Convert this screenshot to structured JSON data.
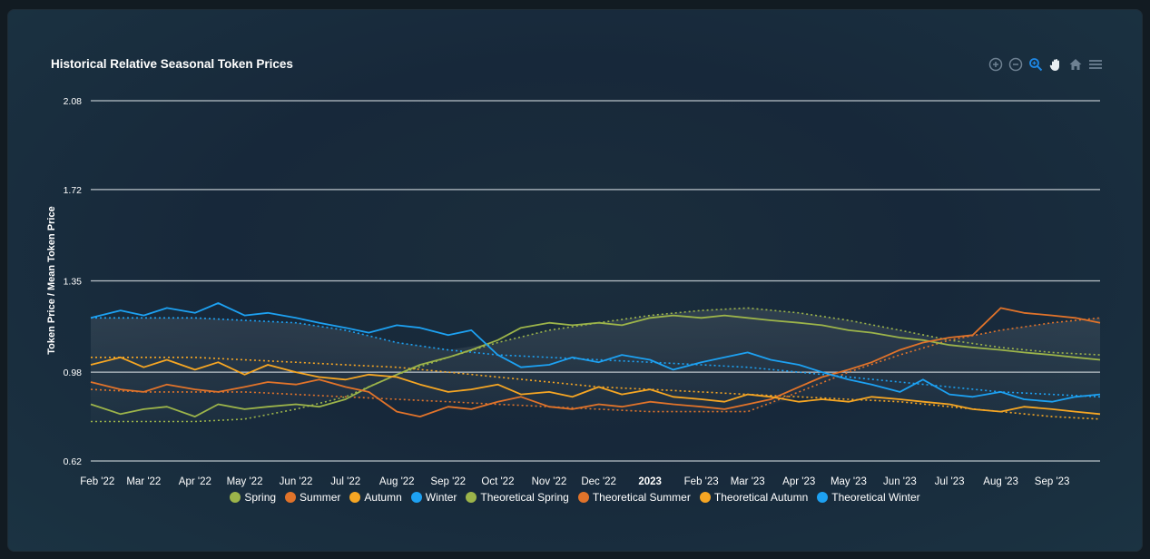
{
  "toolbar": {
    "icons": [
      "zoom-in-icon",
      "zoom-out-icon",
      "selection-zoom-icon",
      "pan-icon",
      "reset-home-icon",
      "menu-icon"
    ],
    "active_color": "#1e88e5",
    "inactive_color": "#6e8192"
  },
  "chart_data": {
    "type": "line",
    "title": "Historical Relative Seasonal Token Prices",
    "ylabel": "Token Price / Mean Token Price",
    "xlabel": "",
    "ylim": [
      0.62,
      2.08
    ],
    "y_ticks": [
      "0.62",
      "0.98",
      "1.35",
      "1.72",
      "2.08"
    ],
    "x_range": [
      "2022-01-28",
      "2023-09-30"
    ],
    "x_ticks": [
      {
        "label": "Feb '22",
        "date": "2022-02-01"
      },
      {
        "label": "Mar '22",
        "date": "2022-03-01"
      },
      {
        "label": "Apr '22",
        "date": "2022-04-01"
      },
      {
        "label": "May '22",
        "date": "2022-05-01"
      },
      {
        "label": "Jun '22",
        "date": "2022-06-01"
      },
      {
        "label": "Jul '22",
        "date": "2022-07-01"
      },
      {
        "label": "Aug '22",
        "date": "2022-08-01"
      },
      {
        "label": "Sep '22",
        "date": "2022-09-01"
      },
      {
        "label": "Oct '22",
        "date": "2022-10-01"
      },
      {
        "label": "Nov '22",
        "date": "2022-11-01"
      },
      {
        "label": "Dec '22",
        "date": "2022-12-01"
      },
      {
        "label": "2023",
        "date": "2023-01-01",
        "bold": true
      },
      {
        "label": "Feb '23",
        "date": "2023-02-01"
      },
      {
        "label": "Mar '23",
        "date": "2023-03-01"
      },
      {
        "label": "Apr '23",
        "date": "2023-04-01"
      },
      {
        "label": "May '23",
        "date": "2023-05-01"
      },
      {
        "label": "Jun '23",
        "date": "2023-06-01"
      },
      {
        "label": "Jul '23",
        "date": "2023-07-01"
      },
      {
        "label": "Aug '23",
        "date": "2023-08-01"
      },
      {
        "label": "Sep '23",
        "date": "2023-09-01"
      }
    ],
    "grid": true,
    "legend_position": "bottom-center",
    "series": [
      {
        "name": "Spring",
        "color": "#9cb44a",
        "style": "solid",
        "x": [
          "2022-01-28",
          "2022-02-15",
          "2022-03-01",
          "2022-03-15",
          "2022-04-01",
          "2022-04-15",
          "2022-05-01",
          "2022-05-15",
          "2022-06-01",
          "2022-06-15",
          "2022-07-01",
          "2022-07-15",
          "2022-08-01",
          "2022-08-15",
          "2022-09-01",
          "2022-09-15",
          "2022-10-01",
          "2022-10-15",
          "2022-11-01",
          "2022-11-15",
          "2022-12-01",
          "2022-12-15",
          "2023-01-01",
          "2023-01-15",
          "2023-02-01",
          "2023-02-15",
          "2023-03-01",
          "2023-03-15",
          "2023-04-01",
          "2023-04-15",
          "2023-05-01",
          "2023-05-15",
          "2023-06-01",
          "2023-06-15",
          "2023-07-01",
          "2023-07-15",
          "2023-08-01",
          "2023-08-15",
          "2023-09-01",
          "2023-09-15",
          "2023-09-30"
        ],
        "y": [
          0.85,
          0.81,
          0.83,
          0.84,
          0.8,
          0.85,
          0.83,
          0.84,
          0.85,
          0.84,
          0.87,
          0.92,
          0.97,
          1.01,
          1.04,
          1.07,
          1.11,
          1.16,
          1.18,
          1.17,
          1.18,
          1.17,
          1.2,
          1.21,
          1.2,
          1.21,
          1.2,
          1.19,
          1.18,
          1.17,
          1.15,
          1.14,
          1.12,
          1.11,
          1.09,
          1.08,
          1.07,
          1.06,
          1.05,
          1.04,
          1.03
        ]
      },
      {
        "name": "Summer",
        "color": "#e1732a",
        "style": "solid",
        "x": [
          "2022-01-28",
          "2022-02-15",
          "2022-03-01",
          "2022-03-15",
          "2022-04-01",
          "2022-04-15",
          "2022-05-01",
          "2022-05-15",
          "2022-06-01",
          "2022-06-15",
          "2022-07-01",
          "2022-07-15",
          "2022-08-01",
          "2022-08-15",
          "2022-09-01",
          "2022-09-15",
          "2022-10-01",
          "2022-10-15",
          "2022-11-01",
          "2022-11-15",
          "2022-12-01",
          "2022-12-15",
          "2023-01-01",
          "2023-01-15",
          "2023-02-01",
          "2023-02-15",
          "2023-03-01",
          "2023-03-15",
          "2023-04-01",
          "2023-04-15",
          "2023-05-01",
          "2023-05-15",
          "2023-06-01",
          "2023-06-15",
          "2023-07-01",
          "2023-07-15",
          "2023-08-01",
          "2023-08-15",
          "2023-09-01",
          "2023-09-15",
          "2023-09-30"
        ],
        "y": [
          0.94,
          0.91,
          0.9,
          0.93,
          0.91,
          0.9,
          0.92,
          0.94,
          0.93,
          0.95,
          0.92,
          0.9,
          0.82,
          0.8,
          0.84,
          0.83,
          0.86,
          0.88,
          0.84,
          0.83,
          0.85,
          0.84,
          0.86,
          0.85,
          0.84,
          0.83,
          0.85,
          0.87,
          0.92,
          0.96,
          0.99,
          1.02,
          1.07,
          1.1,
          1.12,
          1.13,
          1.24,
          1.22,
          1.21,
          1.2,
          1.18
        ]
      },
      {
        "name": "Autumn",
        "color": "#f6a623",
        "style": "solid",
        "x": [
          "2022-01-28",
          "2022-02-15",
          "2022-03-01",
          "2022-03-15",
          "2022-04-01",
          "2022-04-15",
          "2022-05-01",
          "2022-05-15",
          "2022-06-01",
          "2022-06-15",
          "2022-07-01",
          "2022-07-15",
          "2022-08-01",
          "2022-08-15",
          "2022-09-01",
          "2022-09-15",
          "2022-10-01",
          "2022-10-15",
          "2022-11-01",
          "2022-11-15",
          "2022-12-01",
          "2022-12-15",
          "2023-01-01",
          "2023-01-15",
          "2023-02-01",
          "2023-02-15",
          "2023-03-01",
          "2023-03-15",
          "2023-04-01",
          "2023-04-15",
          "2023-05-01",
          "2023-05-15",
          "2023-06-01",
          "2023-06-15",
          "2023-07-01",
          "2023-07-15",
          "2023-08-01",
          "2023-08-15",
          "2023-09-01",
          "2023-09-15",
          "2023-09-30"
        ],
        "y": [
          1.01,
          1.04,
          1.0,
          1.03,
          0.99,
          1.02,
          0.97,
          1.01,
          0.98,
          0.96,
          0.95,
          0.97,
          0.96,
          0.93,
          0.9,
          0.91,
          0.93,
          0.89,
          0.9,
          0.88,
          0.92,
          0.89,
          0.91,
          0.88,
          0.87,
          0.86,
          0.89,
          0.88,
          0.86,
          0.87,
          0.86,
          0.88,
          0.87,
          0.86,
          0.85,
          0.83,
          0.82,
          0.84,
          0.83,
          0.82,
          0.81
        ]
      },
      {
        "name": "Winter",
        "color": "#1da1f2",
        "style": "solid",
        "x": [
          "2022-01-28",
          "2022-02-15",
          "2022-03-01",
          "2022-03-15",
          "2022-04-01",
          "2022-04-15",
          "2022-05-01",
          "2022-05-15",
          "2022-06-01",
          "2022-06-15",
          "2022-07-01",
          "2022-07-15",
          "2022-08-01",
          "2022-08-15",
          "2022-09-01",
          "2022-09-15",
          "2022-10-01",
          "2022-10-15",
          "2022-11-01",
          "2022-11-15",
          "2022-12-01",
          "2022-12-15",
          "2023-01-01",
          "2023-01-15",
          "2023-02-01",
          "2023-02-15",
          "2023-03-01",
          "2023-03-15",
          "2023-04-01",
          "2023-04-15",
          "2023-05-01",
          "2023-05-15",
          "2023-06-01",
          "2023-06-15",
          "2023-07-01",
          "2023-07-15",
          "2023-08-01",
          "2023-08-15",
          "2023-09-01",
          "2023-09-15",
          "2023-09-30"
        ],
        "y": [
          1.2,
          1.23,
          1.21,
          1.24,
          1.22,
          1.26,
          1.21,
          1.22,
          1.2,
          1.18,
          1.16,
          1.14,
          1.17,
          1.16,
          1.13,
          1.15,
          1.05,
          1.0,
          1.01,
          1.04,
          1.02,
          1.05,
          1.03,
          0.99,
          1.02,
          1.04,
          1.06,
          1.03,
          1.01,
          0.98,
          0.95,
          0.93,
          0.9,
          0.95,
          0.89,
          0.88,
          0.9,
          0.87,
          0.86,
          0.88,
          0.89
        ]
      },
      {
        "name": "Theoretical Spring",
        "color": "#9cb44a",
        "style": "dotted",
        "x": [
          "2022-01-28",
          "2022-03-01",
          "2022-04-01",
          "2022-05-01",
          "2022-06-01",
          "2022-07-01",
          "2022-08-01",
          "2022-09-01",
          "2022-10-01",
          "2022-11-01",
          "2022-12-01",
          "2023-01-01",
          "2023-02-01",
          "2023-03-01",
          "2023-04-01",
          "2023-05-01",
          "2023-06-01",
          "2023-07-01",
          "2023-08-01",
          "2023-09-01",
          "2023-09-30"
        ],
        "y": [
          0.78,
          0.78,
          0.78,
          0.79,
          0.83,
          0.88,
          0.97,
          1.04,
          1.1,
          1.15,
          1.18,
          1.21,
          1.23,
          1.24,
          1.22,
          1.19,
          1.15,
          1.11,
          1.08,
          1.06,
          1.05
        ]
      },
      {
        "name": "Theoretical Summer",
        "color": "#e1732a",
        "style": "dotted",
        "x": [
          "2022-01-28",
          "2022-03-01",
          "2022-04-01",
          "2022-05-01",
          "2022-06-01",
          "2022-07-01",
          "2022-08-01",
          "2022-09-01",
          "2022-10-01",
          "2022-11-01",
          "2022-12-01",
          "2023-01-01",
          "2023-02-01",
          "2023-03-01",
          "2023-04-01",
          "2023-05-01",
          "2023-06-01",
          "2023-07-01",
          "2023-08-01",
          "2023-09-01",
          "2023-09-30"
        ],
        "y": [
          0.91,
          0.9,
          0.9,
          0.9,
          0.89,
          0.88,
          0.87,
          0.86,
          0.85,
          0.84,
          0.83,
          0.82,
          0.82,
          0.82,
          0.9,
          0.98,
          1.05,
          1.11,
          1.15,
          1.18,
          1.2
        ]
      },
      {
        "name": "Theoretical Autumn",
        "color": "#f6a623",
        "style": "dotted",
        "x": [
          "2022-01-28",
          "2022-03-01",
          "2022-04-01",
          "2022-05-01",
          "2022-06-01",
          "2022-07-01",
          "2022-08-01",
          "2022-09-01",
          "2022-10-01",
          "2022-11-01",
          "2022-12-01",
          "2023-01-01",
          "2023-02-01",
          "2023-03-01",
          "2023-04-01",
          "2023-05-01",
          "2023-06-01",
          "2023-07-01",
          "2023-08-01",
          "2023-09-01",
          "2023-09-30"
        ],
        "y": [
          1.04,
          1.04,
          1.04,
          1.03,
          1.02,
          1.01,
          1.0,
          0.98,
          0.96,
          0.94,
          0.92,
          0.91,
          0.9,
          0.89,
          0.88,
          0.87,
          0.86,
          0.84,
          0.82,
          0.8,
          0.79
        ]
      },
      {
        "name": "Theoretical Winter",
        "color": "#1da1f2",
        "style": "dotted",
        "x": [
          "2022-01-28",
          "2022-03-01",
          "2022-04-01",
          "2022-05-01",
          "2022-06-01",
          "2022-07-01",
          "2022-08-01",
          "2022-09-01",
          "2022-10-01",
          "2022-11-01",
          "2022-12-01",
          "2023-01-01",
          "2023-02-01",
          "2023-03-01",
          "2023-04-01",
          "2023-05-01",
          "2023-06-01",
          "2023-07-01",
          "2023-08-01",
          "2023-09-01",
          "2023-09-30"
        ],
        "y": [
          1.2,
          1.2,
          1.2,
          1.19,
          1.18,
          1.15,
          1.1,
          1.07,
          1.05,
          1.04,
          1.03,
          1.02,
          1.01,
          1.0,
          0.98,
          0.96,
          0.94,
          0.92,
          0.9,
          0.89,
          0.88
        ]
      }
    ]
  }
}
